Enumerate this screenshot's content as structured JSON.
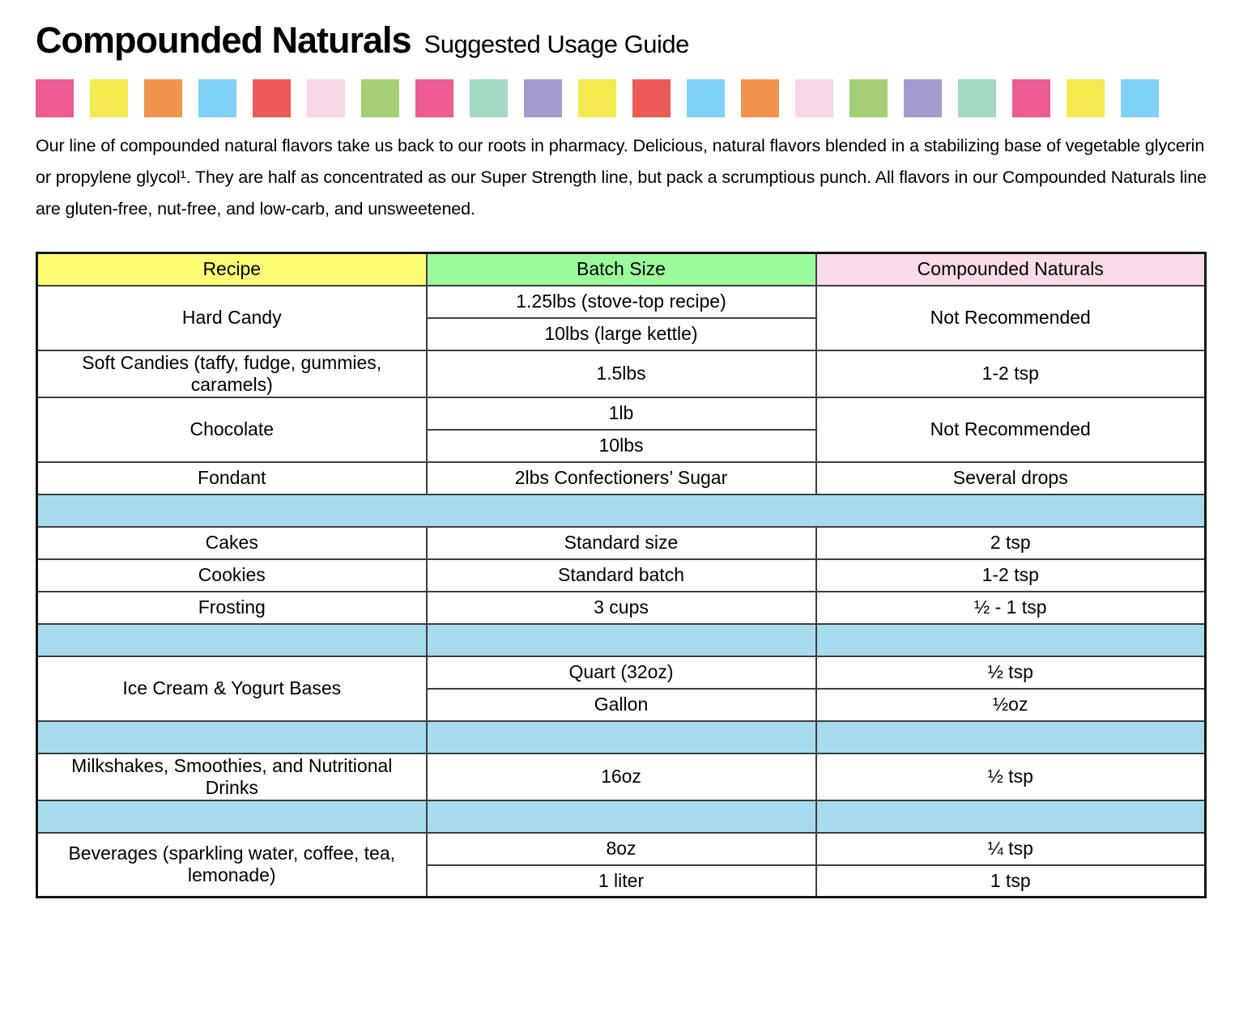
{
  "header": {
    "title": "Compounded Naturals",
    "subtitle": "Suggested Usage Guide"
  },
  "decorative_squares": [
    "#EA5C92",
    "#F2EA4F",
    "#F0934E",
    "#7FD2F6",
    "#EB5A55",
    "#F6D7E8",
    "#A5CE76",
    "#EA5C92",
    "#A3D8C2",
    "#A29BCE",
    "#F2EA4F",
    "#EB5A55",
    "#7FD2F6",
    "#F0934E",
    "#F6D7E8",
    "#A5CE76",
    "#A29BCE",
    "#A3D8C2",
    "#EA5C92",
    "#F2EA4F",
    "#7FD2F6"
  ],
  "intro": {
    "text": "Our line of compounded natural flavors take us back to our roots in pharmacy. Delicious, natural flavors blended in a stabilizing base of vegetable glycerin or propylene glycol¹. They are half as concentrated as our Super Strength line, but pack a scrumptious punch. All flavors in our Compounded Naturals line are gluten-free, nut-free, and low-carb, and unsweetened."
  },
  "colors": {
    "header_yellow": "#FDFD74",
    "header_green": "#9BFC9B",
    "header_pink": "#F9DBE9",
    "separator_blue": "#A6DCEB",
    "grid_line": "#3F3F3F",
    "outer_border": "#161616"
  },
  "table": {
    "header": {
      "recipe": "Recipe",
      "batch_size": "Batch Size",
      "compounded_naturals": "Compounded Naturals"
    },
    "hard_candy": {
      "recipe": "Hard Candy",
      "batch_1": "1.25lbs (stove-top recipe)",
      "batch_2": "10lbs (large kettle)",
      "usage": "Not Recommended"
    },
    "soft_candies": {
      "recipe": "Soft Candies (taffy, fudge, gummies, caramels)",
      "batch": "1.5lbs",
      "usage": "1-2 tsp"
    },
    "chocolate": {
      "recipe": "Chocolate",
      "batch_1": "1lb",
      "batch_2": "10lbs",
      "usage": "Not Recommended"
    },
    "fondant": {
      "recipe": "Fondant",
      "batch": "2lbs Confectioners’ Sugar",
      "usage": "Several drops"
    },
    "cakes": {
      "recipe": "Cakes",
      "batch": "Standard size",
      "usage": "2 tsp"
    },
    "cookies": {
      "recipe": "Cookies",
      "batch": "Standard batch",
      "usage": "1-2 tsp"
    },
    "frosting": {
      "recipe": "Frosting",
      "batch": "3 cups",
      "usage": "½ - 1 tsp"
    },
    "ice_cream": {
      "recipe": "Ice Cream & Yogurt Bases",
      "batch_1": "Quart (32oz)",
      "usage_1": "½ tsp",
      "batch_2": "Gallon",
      "usage_2": "½oz"
    },
    "milkshakes": {
      "recipe": "Milkshakes, Smoothies, and Nutritional Drinks",
      "batch": "16oz",
      "usage": "½ tsp"
    },
    "beverages": {
      "recipe": "Beverages (sparkling water, coffee, tea, lemonade)",
      "batch_1": "8oz",
      "usage_1": "¼ tsp",
      "batch_2": "1 liter",
      "usage_2": "1 tsp"
    }
  }
}
